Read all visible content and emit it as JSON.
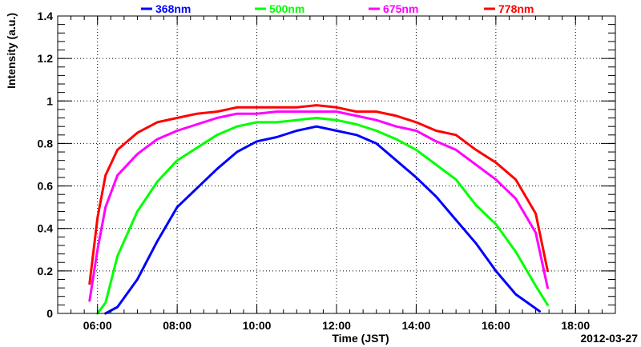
{
  "chart_data": {
    "type": "line",
    "title": "",
    "xlabel": "Time (JST)",
    "ylabel": "Intensity (a.u.)",
    "date_label": "2012-03-27",
    "x_unit": "hour of day (JST)",
    "xlim": [
      5.0,
      19.0
    ],
    "ylim": [
      0,
      1.4
    ],
    "x_ticks": [
      6,
      8,
      10,
      12,
      14,
      16,
      18
    ],
    "x_tick_labels": [
      "06:00",
      "08:00",
      "10:00",
      "12:00",
      "14:00",
      "16:00",
      "18:00"
    ],
    "y_ticks": [
      0,
      0.2,
      0.4,
      0.6,
      0.8,
      1,
      1.2,
      1.4
    ],
    "y_tick_labels": [
      "0",
      "0.2",
      "0.4",
      "0.6",
      "0.8",
      "1",
      "1.2",
      "1.4"
    ],
    "grid": true,
    "legend_position": "top",
    "series": [
      {
        "name": "368nm",
        "color": "#0000ff",
        "points": [
          [
            6.2,
            0.0
          ],
          [
            6.5,
            0.03
          ],
          [
            7.0,
            0.16
          ],
          [
            7.5,
            0.34
          ],
          [
            8.0,
            0.5
          ],
          [
            8.5,
            0.59
          ],
          [
            9.0,
            0.68
          ],
          [
            9.5,
            0.76
          ],
          [
            10.0,
            0.81
          ],
          [
            10.5,
            0.83
          ],
          [
            11.0,
            0.86
          ],
          [
            11.5,
            0.88
          ],
          [
            12.0,
            0.86
          ],
          [
            12.5,
            0.84
          ],
          [
            13.0,
            0.8
          ],
          [
            13.5,
            0.72
          ],
          [
            14.0,
            0.64
          ],
          [
            14.5,
            0.55
          ],
          [
            15.0,
            0.44
          ],
          [
            15.5,
            0.33
          ],
          [
            16.0,
            0.2
          ],
          [
            16.5,
            0.09
          ],
          [
            17.1,
            0.01
          ]
        ]
      },
      {
        "name": "500nm",
        "color": "#00ff00",
        "points": [
          [
            6.0,
            0.0
          ],
          [
            6.2,
            0.05
          ],
          [
            6.5,
            0.27
          ],
          [
            7.0,
            0.48
          ],
          [
            7.5,
            0.62
          ],
          [
            8.0,
            0.72
          ],
          [
            8.5,
            0.78
          ],
          [
            9.0,
            0.84
          ],
          [
            9.5,
            0.88
          ],
          [
            10.0,
            0.9
          ],
          [
            10.5,
            0.9
          ],
          [
            11.0,
            0.91
          ],
          [
            11.5,
            0.92
          ],
          [
            12.0,
            0.91
          ],
          [
            12.5,
            0.89
          ],
          [
            13.0,
            0.86
          ],
          [
            13.5,
            0.82
          ],
          [
            14.0,
            0.77
          ],
          [
            14.5,
            0.7
          ],
          [
            15.0,
            0.63
          ],
          [
            15.5,
            0.51
          ],
          [
            16.0,
            0.42
          ],
          [
            16.5,
            0.29
          ],
          [
            17.0,
            0.13
          ],
          [
            17.3,
            0.04
          ]
        ]
      },
      {
        "name": "675nm",
        "color": "#ff00ff",
        "points": [
          [
            5.8,
            0.06
          ],
          [
            6.0,
            0.3
          ],
          [
            6.2,
            0.5
          ],
          [
            6.5,
            0.65
          ],
          [
            7.0,
            0.75
          ],
          [
            7.5,
            0.82
          ],
          [
            8.0,
            0.86
          ],
          [
            8.5,
            0.89
          ],
          [
            9.0,
            0.92
          ],
          [
            9.5,
            0.94
          ],
          [
            10.0,
            0.94
          ],
          [
            10.5,
            0.95
          ],
          [
            11.0,
            0.95
          ],
          [
            11.5,
            0.95
          ],
          [
            12.0,
            0.95
          ],
          [
            12.5,
            0.93
          ],
          [
            13.0,
            0.91
          ],
          [
            13.5,
            0.88
          ],
          [
            14.0,
            0.86
          ],
          [
            14.5,
            0.81
          ],
          [
            15.0,
            0.77
          ],
          [
            15.5,
            0.7
          ],
          [
            16.0,
            0.63
          ],
          [
            16.5,
            0.54
          ],
          [
            17.0,
            0.38
          ],
          [
            17.3,
            0.12
          ]
        ]
      },
      {
        "name": "778nm",
        "color": "#ff0000",
        "points": [
          [
            5.8,
            0.14
          ],
          [
            6.0,
            0.45
          ],
          [
            6.2,
            0.65
          ],
          [
            6.5,
            0.77
          ],
          [
            7.0,
            0.85
          ],
          [
            7.5,
            0.9
          ],
          [
            8.0,
            0.92
          ],
          [
            8.5,
            0.94
          ],
          [
            9.0,
            0.95
          ],
          [
            9.5,
            0.97
          ],
          [
            10.0,
            0.97
          ],
          [
            10.5,
            0.97
          ],
          [
            11.0,
            0.97
          ],
          [
            11.5,
            0.98
          ],
          [
            12.0,
            0.97
          ],
          [
            12.5,
            0.95
          ],
          [
            13.0,
            0.95
          ],
          [
            13.5,
            0.93
          ],
          [
            14.0,
            0.9
          ],
          [
            14.5,
            0.86
          ],
          [
            15.0,
            0.84
          ],
          [
            15.5,
            0.77
          ],
          [
            16.0,
            0.71
          ],
          [
            16.5,
            0.63
          ],
          [
            17.0,
            0.47
          ],
          [
            17.3,
            0.2
          ]
        ]
      }
    ]
  }
}
